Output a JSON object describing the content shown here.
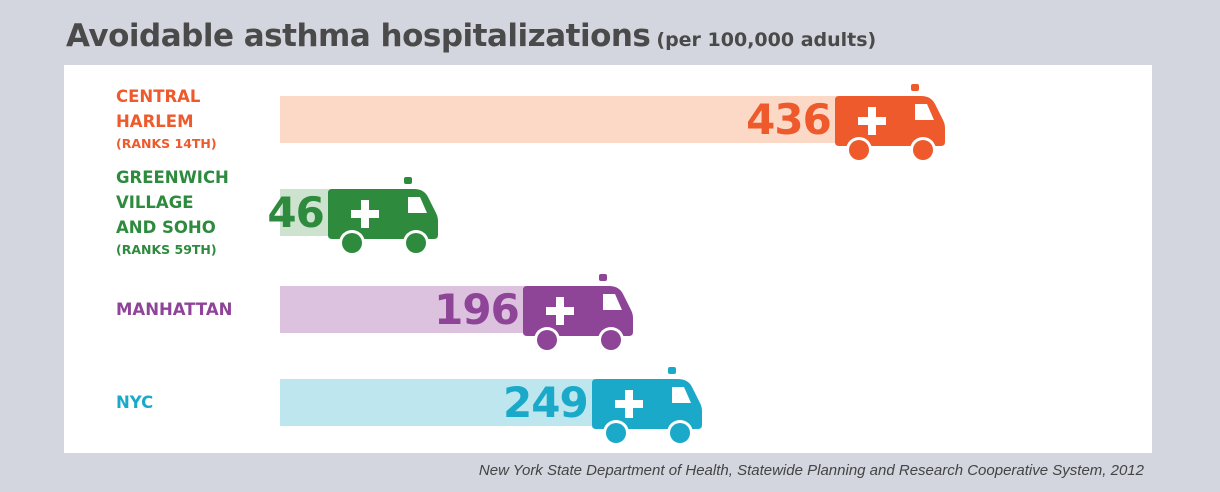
{
  "title": "Avoidable asthma hospitalizations",
  "subtitle": "(per 100,000 adults)",
  "source": "New York State Department of Health, Statewide Planning and Research Cooperative System, 2012",
  "chart_data": {
    "type": "bar",
    "orientation": "horizontal",
    "title": "Avoidable asthma hospitalizations",
    "subtitle": "(per 100,000 adults)",
    "categories": [
      "CENTRAL HARLEM",
      "GREENWICH VILLAGE AND SOHO",
      "MANHATTAN",
      "NYC"
    ],
    "values": [
      436,
      46,
      196,
      249
    ],
    "value_labels": [
      "436",
      "46",
      "196",
      "249"
    ],
    "category_labels": [
      {
        "lines": [
          "CENTRAL",
          "HARLEM"
        ],
        "rank": "(RANKS 14TH)"
      },
      {
        "lines": [
          "GREENWICH",
          "VILLAGE",
          "AND SOHO"
        ],
        "rank": "(RANKS 59TH)"
      },
      {
        "lines": [
          "MANHATTAN"
        ],
        "rank": ""
      },
      {
        "lines": [
          "NYC"
        ],
        "rank": ""
      }
    ],
    "colors": [
      "#ee5a2c",
      "#2e8b3e",
      "#8e4598",
      "#1aa9c8"
    ],
    "bar_colors": [
      "#fcd9c6",
      "#cde3cf",
      "#dcc2de",
      "#bde6ee"
    ],
    "icon": "ambulance-icon",
    "xlabel": "",
    "ylabel": "",
    "grid": false,
    "legend": "none"
  }
}
